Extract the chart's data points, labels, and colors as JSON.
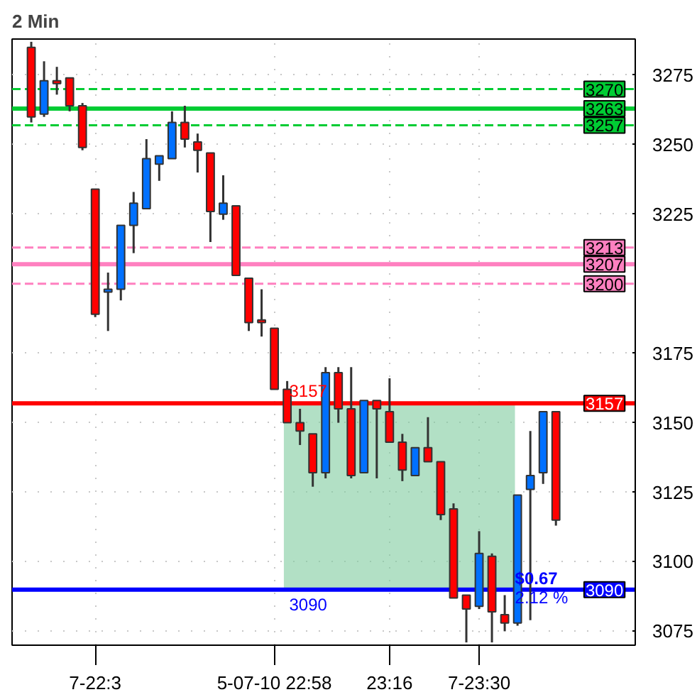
{
  "chart_data": {
    "type": "candlestick",
    "title": "2 Min",
    "categories": [
      null,
      null,
      null,
      null,
      null,
      "7-22:3",
      null,
      null,
      null,
      null,
      null,
      null,
      null,
      null,
      null,
      null,
      null,
      null,
      null,
      "5-07-10 22:58",
      null,
      null,
      null,
      null,
      null,
      null,
      null,
      null,
      "23:16",
      null,
      null,
      null,
      null,
      null,
      null,
      "7-23:30",
      null,
      null,
      null,
      null,
      null,
      null
    ],
    "ohlc": [
      [
        3285,
        3287,
        3258,
        3260
      ],
      [
        3261,
        3280,
        3260,
        3273
      ],
      [
        3273,
        3278,
        3268,
        3272
      ],
      [
        3274,
        3274,
        3262,
        3264
      ],
      [
        3264,
        3265,
        3248,
        3249
      ],
      [
        3234,
        3234,
        3188,
        3189
      ],
      [
        3197,
        3204,
        3183,
        3198
      ],
      [
        3198,
        3221,
        3194,
        3221
      ],
      [
        3221,
        3233,
        3211,
        3229
      ],
      [
        3227,
        3252,
        3227,
        3245
      ],
      [
        3243,
        3246,
        3237,
        3246
      ],
      [
        3245,
        3262,
        3245,
        3258
      ],
      [
        3258,
        3264,
        3249,
        3252
      ],
      [
        3251,
        3254,
        3240,
        3248
      ],
      [
        3247,
        3247,
        3215,
        3226
      ],
      [
        3225,
        3239,
        3223,
        3229
      ],
      [
        3228,
        3228,
        3203,
        3203
      ],
      [
        3202,
        3202,
        3183,
        3186
      ],
      [
        3187,
        3198,
        3181,
        3186
      ],
      [
        3184,
        3184,
        3162,
        3162
      ],
      [
        3162,
        3165,
        3150,
        3150
      ],
      [
        3150,
        3155,
        3142,
        3147
      ],
      [
        3146,
        3146,
        3127,
        3132
      ],
      [
        3132,
        3170,
        3130,
        3168
      ],
      [
        3168,
        3170,
        3150,
        3155
      ],
      [
        3155,
        3170,
        3130,
        3131
      ],
      [
        3132,
        3158,
        3132,
        3158
      ],
      [
        3158,
        3158,
        3130,
        3155
      ],
      [
        3154,
        3166,
        3143,
        3143
      ],
      [
        3143,
        3146,
        3129,
        3133
      ],
      [
        3131,
        3141,
        3131,
        3141
      ],
      [
        3141,
        3152,
        3136,
        3136
      ],
      [
        3136,
        3136,
        3115,
        3117
      ],
      [
        3119,
        3121,
        3087,
        3087
      ],
      [
        3088,
        3088,
        3071,
        3083
      ],
      [
        3084,
        3111,
        3083,
        3103
      ],
      [
        3102,
        3103,
        3071,
        3082
      ],
      [
        3081,
        3088,
        3075,
        3078
      ],
      [
        3078,
        3124,
        3077,
        3124
      ],
      [
        3126,
        3147,
        3079,
        3131
      ],
      [
        3132,
        3154,
        3128,
        3154
      ],
      [
        3154,
        3154,
        3113,
        3115
      ]
    ],
    "colors": [
      "#ff0000",
      "#0070ff",
      "#ff0000",
      "#ff0000",
      "#ff0000",
      "#ff0000",
      "#0070ff",
      "#0070ff",
      "#0070ff",
      "#0070ff",
      "#0070ff",
      "#0070ff",
      "#ff0000",
      "#ff0000",
      "#ff0000",
      "#0070ff",
      "#ff0000",
      "#ff0000",
      "#ff0000",
      "#ff0000",
      "#ff0000",
      "#ff0000",
      "#ff0000",
      "#0070ff",
      "#ff0000",
      "#ff0000",
      "#0070ff",
      "#ff0000",
      "#ff0000",
      "#ff0000",
      "#0070ff",
      "#ff0000",
      "#ff0000",
      "#ff0000",
      "#ff0000",
      "#0070ff",
      "#ff0000",
      "#ff0000",
      "#0070ff",
      "#0070ff",
      "#0070ff",
      "#ff0000"
    ],
    "ylim": [
      3070,
      3288
    ],
    "yticks": [
      3075,
      3100,
      3125,
      3150,
      3175,
      3225,
      3250,
      3275
    ],
    "ref_lines": [
      {
        "axis": "y",
        "value": 3270,
        "label": "3270",
        "color": "#00cc33",
        "line_style": "dashed"
      },
      {
        "axis": "y",
        "value": 3263,
        "label": "3263",
        "color": "#00cc33",
        "line_style": "solid"
      },
      {
        "axis": "y",
        "value": 3257,
        "label": "3257",
        "color": "#00cc33",
        "line_style": "dashed"
      },
      {
        "axis": "y",
        "value": 3213,
        "label": "3213",
        "color": "#ff80c0",
        "line_style": "dashed"
      },
      {
        "axis": "y",
        "value": 3207,
        "label": "3207",
        "color": "#ff80c0",
        "line_style": "solid"
      },
      {
        "axis": "y",
        "value": 3200,
        "label": "3200",
        "color": "#ff80c0",
        "line_style": "dashed"
      },
      {
        "axis": "y",
        "value": 3157,
        "label": "3157",
        "color": "#ff0000",
        "line_style": "solid"
      },
      {
        "axis": "y",
        "value": 3090,
        "label": "3090",
        "color": "#0000ff",
        "line_style": "solid"
      }
    ],
    "bands": [
      {
        "axis": "y",
        "from": 3090,
        "to": 3157,
        "color": "#7fcc9f"
      }
    ],
    "annotations": [
      "3157",
      "3090",
      {
        "text": "$0.67",
        "y": 3094
      },
      {
        "text": "2.12 %",
        "y": 3087
      }
    ],
    "grid": true
  }
}
